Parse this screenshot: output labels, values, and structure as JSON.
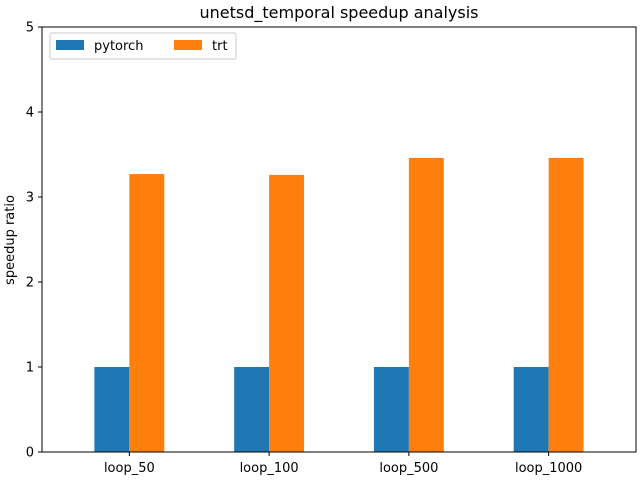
{
  "chart_data": {
    "type": "bar",
    "title": "unetsd_temporal speedup analysis",
    "xlabel": "",
    "ylabel": "speedup ratio",
    "categories": [
      "loop_50",
      "loop_100",
      "loop_500",
      "loop_1000"
    ],
    "series": [
      {
        "name": "pytorch",
        "color": "#1f77b4",
        "values": [
          1.0,
          1.0,
          1.0,
          1.0
        ]
      },
      {
        "name": "trt",
        "color": "#ff7f0e",
        "values": [
          3.27,
          3.26,
          3.46,
          3.46
        ]
      }
    ],
    "ylim": [
      0,
      5
    ],
    "yticks": [
      "0",
      "1",
      "2",
      "3",
      "4",
      "5"
    ],
    "grid": false,
    "legend": {
      "placement": "top-left",
      "columns": 2
    }
  }
}
